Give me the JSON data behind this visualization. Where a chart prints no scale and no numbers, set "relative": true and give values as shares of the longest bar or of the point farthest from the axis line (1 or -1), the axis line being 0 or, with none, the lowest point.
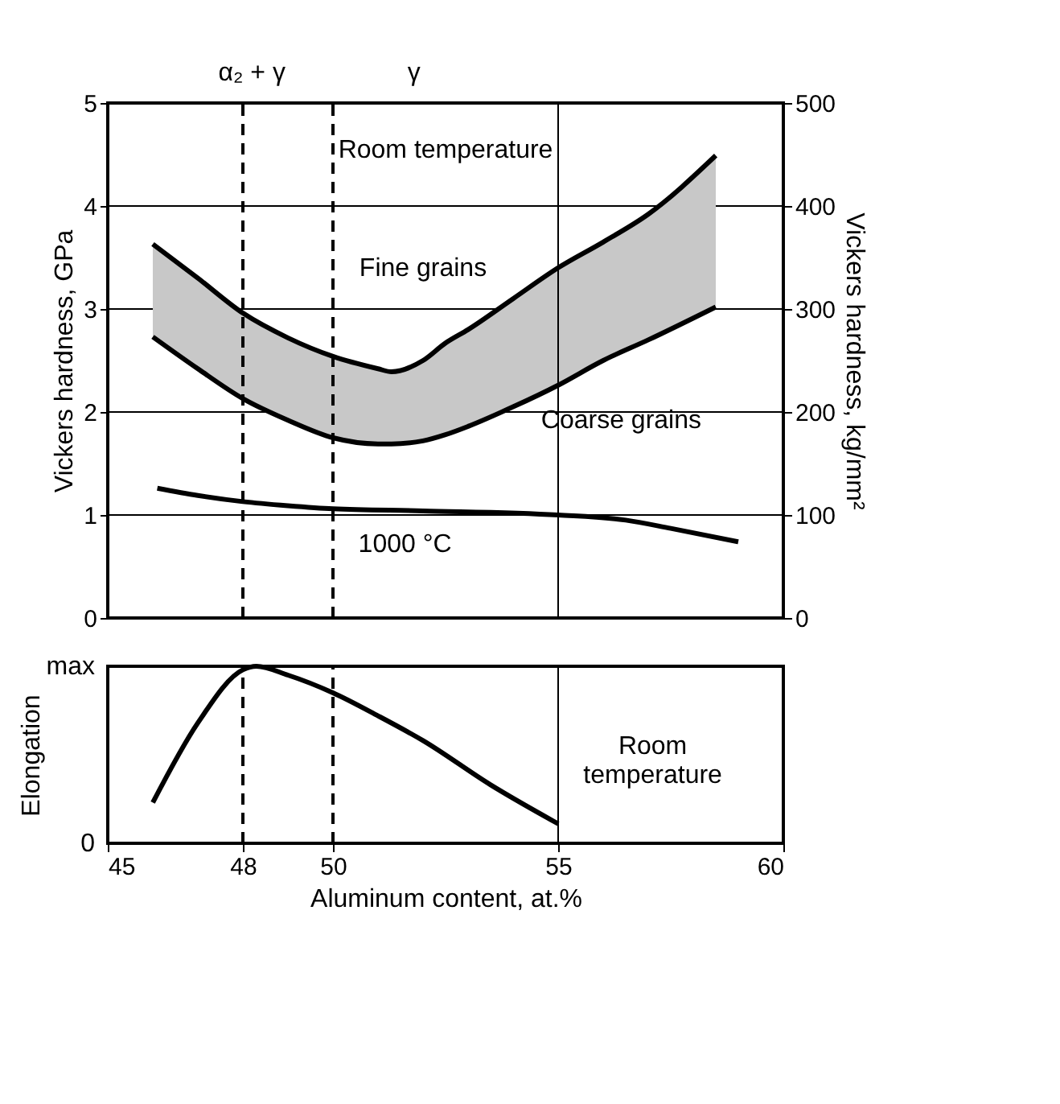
{
  "chart_data": [
    {
      "type": "line",
      "ylabel": "Vickers hardness, GPa",
      "y2label": "Vickers hardness, kg/mm²",
      "x": [
        46,
        47,
        48,
        49,
        50,
        51,
        51.3,
        52,
        52.5,
        53,
        54,
        55,
        56,
        57,
        58.5
      ],
      "series": [
        {
          "name": "Fine grains",
          "color": "#000000",
          "values": [
            3.63,
            3.3,
            2.96,
            2.72,
            2.54,
            2.42,
            2.39,
            2.5,
            2.67,
            2.8,
            3.1,
            3.4,
            3.65,
            3.92,
            4.49
          ],
          "lower": [
            2.73,
            2.42,
            2.13,
            1.92,
            1.75,
            1.69,
            1.69,
            1.72,
            1.78,
            1.86,
            2.05,
            2.26,
            2.5,
            2.7,
            3.02
          ],
          "upper": [
            3.63,
            3.3,
            2.96,
            2.72,
            2.54,
            2.42,
            2.39,
            2.5,
            2.67,
            2.8,
            3.1,
            3.4,
            3.65,
            3.92,
            4.49
          ]
        },
        {
          "name": "Coarse grains",
          "color": "#000000",
          "values": [
            2.73,
            2.42,
            2.13,
            1.92,
            1.75,
            1.69,
            1.69,
            1.72,
            1.78,
            1.86,
            2.05,
            2.26,
            2.5,
            2.7,
            3.02
          ]
        },
        {
          "name": "1000 °C",
          "color": "#000000",
          "x": [
            46.1,
            47,
            48,
            49,
            50,
            52,
            55,
            56.5,
            57.5,
            59
          ],
          "values": [
            1.26,
            1.19,
            1.13,
            1.09,
            1.06,
            1.04,
            1.0,
            0.95,
            0.87,
            0.74
          ]
        }
      ],
      "xlim": [
        45,
        60
      ],
      "xticks": [
        45,
        48,
        50,
        55,
        60
      ],
      "ylim": [
        0,
        5
      ],
      "yticks": [
        0,
        1,
        2,
        3,
        4,
        5
      ],
      "y2lim": [
        0,
        500
      ],
      "y2ticks": [
        0,
        100,
        200,
        300,
        400,
        500
      ],
      "tick_labels": "y",
      "grid": "y",
      "ref_lines": [
        {
          "axis": "x",
          "value": 48,
          "line_style": "dashed"
        },
        {
          "axis": "x",
          "value": 50,
          "line_style": "dashed"
        },
        {
          "axis": "x",
          "value": 55
        }
      ],
      "annotations": [
        "α₂ + γ",
        "γ",
        "Room temperature"
      ]
    },
    {
      "type": "line",
      "xlabel": "Aluminum content, at.%",
      "ylabel": "Elongation",
      "relative": true,
      "x": [
        46,
        47,
        48,
        48.3,
        49,
        50,
        51,
        52,
        53.5,
        55
      ],
      "series": [
        {
          "name": "Room temperature",
          "color": "#000000",
          "values": [
            0.23,
            0.68,
            0.98,
            1.0,
            0.95,
            0.85,
            0.72,
            0.58,
            0.33,
            0.11
          ]
        }
      ],
      "xlim": [
        45,
        60
      ],
      "xticks": [
        45,
        48,
        50,
        55,
        60
      ],
      "ref_lines": [
        {
          "axis": "x",
          "value": 48,
          "line_style": "dashed"
        },
        {
          "axis": "x",
          "value": 50,
          "line_style": "dashed"
        },
        {
          "axis": "x",
          "value": 55
        }
      ],
      "annotations": [
        "max",
        "0"
      ]
    }
  ]
}
